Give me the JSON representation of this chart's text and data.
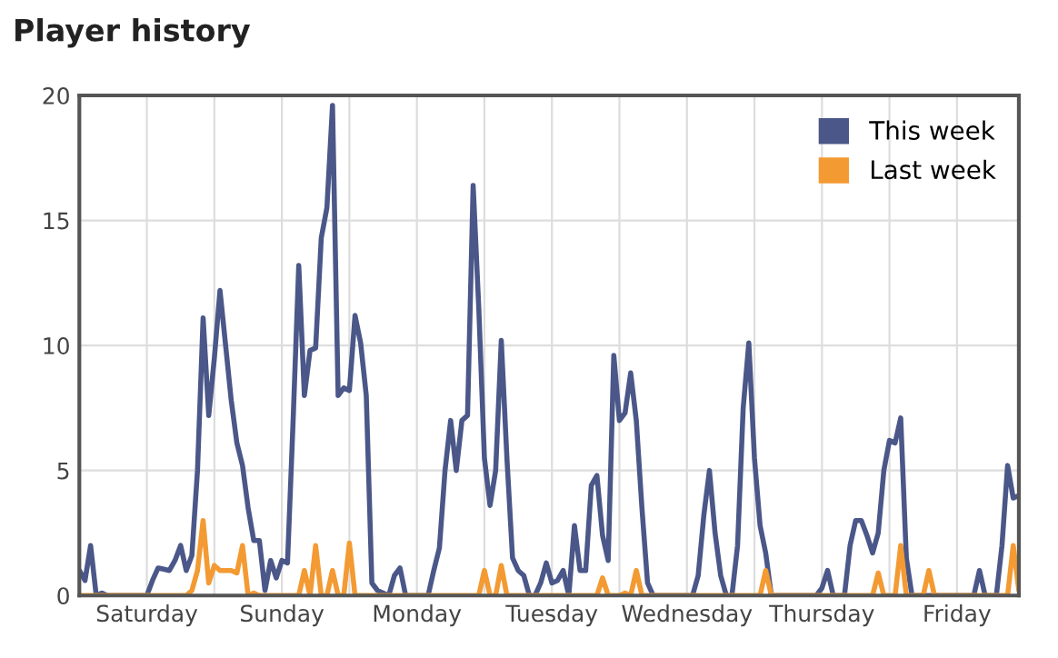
{
  "chart_data": {
    "type": "line",
    "title": "Player history",
    "categories": [
      null,
      null,
      null,
      null,
      null,
      null,
      null,
      null,
      null,
      null,
      null,
      null,
      "Saturday",
      null,
      null,
      null,
      null,
      null,
      null,
      null,
      null,
      null,
      null,
      null,
      null,
      null,
      null,
      null,
      null,
      null,
      null,
      null,
      null,
      null,
      null,
      null,
      "Sunday",
      null,
      null,
      null,
      null,
      null,
      null,
      null,
      null,
      null,
      null,
      null,
      null,
      null,
      null,
      null,
      null,
      null,
      null,
      null,
      null,
      null,
      null,
      null,
      "Monday",
      null,
      null,
      null,
      null,
      null,
      null,
      null,
      null,
      null,
      null,
      null,
      null,
      null,
      null,
      null,
      null,
      null,
      null,
      null,
      null,
      null,
      null,
      null,
      "Tuesday",
      null,
      null,
      null,
      null,
      null,
      null,
      null,
      null,
      null,
      null,
      null,
      null,
      null,
      null,
      null,
      null,
      null,
      null,
      null,
      null,
      null,
      null,
      null,
      "Wednesday",
      null,
      null,
      null,
      null,
      null,
      null,
      null,
      null,
      null,
      null,
      null,
      null,
      null,
      null,
      null,
      null,
      null,
      null,
      null,
      null,
      null,
      null,
      null,
      "Thursday",
      null,
      null,
      null,
      null,
      null,
      null,
      null,
      null,
      null,
      null,
      null,
      null,
      null,
      null,
      null,
      null,
      null,
      null,
      null,
      null,
      null,
      null,
      null,
      "Friday",
      null,
      null,
      null,
      null,
      null,
      null,
      null,
      null,
      null,
      null,
      null
    ],
    "ylim": [
      0,
      20
    ],
    "yticks": [
      0,
      5,
      10,
      15,
      20
    ],
    "grid": true,
    "legend": "top right",
    "marker": "none",
    "line_style": "solid",
    "series": [
      {
        "name": "This week",
        "color": "#4a5788",
        "values": [
          1.0,
          0.6,
          2.0,
          0,
          0.1,
          0,
          0,
          0,
          0,
          0,
          0,
          0,
          0,
          0.6,
          1.1,
          1.05,
          1.0,
          1.4,
          2.0,
          1.0,
          1.6,
          5,
          11.1,
          7.2,
          9.5,
          12.2,
          10,
          7.8,
          6.1,
          5.2,
          3.5,
          2.2,
          2.2,
          0.2,
          1.4,
          0.7,
          1.4,
          1.3,
          7,
          13.2,
          8.0,
          9.8,
          9.9,
          14.3,
          15.5,
          19.6,
          8.0,
          8.3,
          8.2,
          11.2,
          10.1,
          8,
          0.5,
          0.2,
          0.1,
          0,
          0.8,
          1.1,
          0,
          0,
          0,
          0,
          0,
          1.0,
          1.9,
          5.0,
          7.0,
          5.0,
          7.0,
          7.2,
          16.4,
          11.5,
          5.5,
          3.6,
          5.0,
          10.2,
          5.5,
          1.5,
          1.0,
          0.8,
          0,
          0,
          0.5,
          1.3,
          0.5,
          0.6,
          1.0,
          0,
          2.8,
          1.0,
          1.0,
          4.4,
          4.8,
          2.4,
          1.4,
          9.6,
          7.0,
          7.3,
          8.9,
          7.0,
          3.5,
          0.5,
          0,
          0,
          0,
          0,
          0,
          0,
          0,
          0,
          0.8,
          3.2,
          5.0,
          2.5,
          0.8,
          0,
          0,
          2,
          7.5,
          10.1,
          5.5,
          2.8,
          1.7,
          0,
          0,
          0,
          0,
          0,
          0,
          0,
          0,
          0,
          0.3,
          1.0,
          0,
          0,
          0,
          2.0,
          3.0,
          3.0,
          2.4,
          1.7,
          2.5,
          5.0,
          6.2,
          6.1,
          7.1,
          1.5,
          0,
          0,
          0,
          0,
          0,
          0,
          0,
          0,
          0,
          0,
          0,
          0,
          1.0,
          0,
          0,
          0,
          2,
          5.2,
          3.9,
          4.0
        ]
      },
      {
        "name": "Last week",
        "color": "#f39a33",
        "values": [
          0,
          0,
          0,
          0,
          0,
          0,
          0,
          0,
          0,
          0,
          0,
          0,
          0,
          0,
          0,
          0,
          0,
          0,
          0,
          0,
          0.2,
          1.0,
          3.0,
          0.5,
          1.2,
          1.0,
          1.0,
          1.0,
          0.9,
          2.0,
          0,
          0.1,
          0,
          0,
          0,
          0,
          0,
          0,
          0,
          0,
          1.0,
          0,
          2.0,
          0,
          0,
          1.0,
          0,
          0,
          2.1,
          0,
          0,
          0,
          0,
          0,
          0,
          0,
          0,
          0,
          0,
          0,
          0,
          0,
          0,
          0,
          0,
          0,
          0,
          0,
          0,
          0,
          0,
          0,
          1.0,
          0,
          0,
          1.2,
          0,
          0,
          0,
          0,
          0,
          0,
          0,
          0,
          0,
          0,
          0,
          0,
          0,
          0,
          0,
          0,
          0,
          0.7,
          0,
          0,
          0,
          0.1,
          0,
          1.0,
          0,
          0,
          0,
          0,
          0,
          0,
          0,
          0,
          0,
          0,
          0,
          0,
          0,
          0,
          0,
          0,
          0,
          0,
          0,
          0,
          0,
          0,
          1.0,
          0,
          0,
          0,
          0,
          0,
          0,
          0,
          0,
          0,
          0,
          0,
          0,
          0,
          0,
          0,
          0,
          0,
          0,
          0,
          0.9,
          0,
          0,
          0,
          2.0,
          0,
          0,
          0,
          0,
          1.0,
          0,
          0,
          0,
          0,
          0,
          0,
          0,
          0,
          0,
          0,
          0,
          0,
          0,
          0,
          2.0,
          0.2
        ]
      }
    ]
  }
}
